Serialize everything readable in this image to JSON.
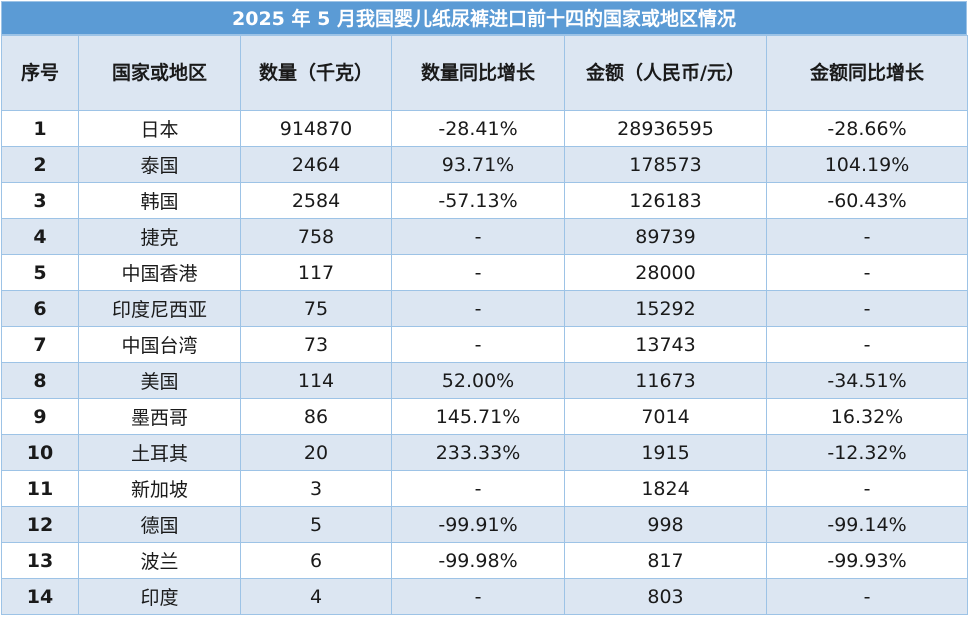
{
  "title": "2025 年 5 月我国婴儿纸尿裤进口前十四的国家或地区情况",
  "headers": [
    "序号",
    "国家或地区",
    "数量（千克）",
    "数量同比增长",
    "金额（人民币/元）",
    "金额同比增长"
  ],
  "rows": [
    [
      "1",
      "日本",
      "914870",
      "-28.41%",
      "28936595",
      "-28.66%"
    ],
    [
      "2",
      "泰国",
      "2464",
      "93.71%",
      "178573",
      "104.19%"
    ],
    [
      "3",
      "韩国",
      "2584",
      "-57.13%",
      "126183",
      "-60.43%"
    ],
    [
      "4",
      "捷克",
      "758",
      "-",
      "89739",
      "-"
    ],
    [
      "5",
      "中国香港",
      "117",
      "-",
      "28000",
      "-"
    ],
    [
      "6",
      "印度尼西亚",
      "75",
      "-",
      "15292",
      "-"
    ],
    [
      "7",
      "中国台湾",
      "73",
      "-",
      "13743",
      "-"
    ],
    [
      "8",
      "美国",
      "114",
      "52.00%",
      "11673",
      "-34.51%"
    ],
    [
      "9",
      "墨西哥",
      "86",
      "145.71%",
      "7014",
      "16.32%"
    ],
    [
      "10",
      "土耳其",
      "20",
      "233.33%",
      "1915",
      "-12.32%"
    ],
    [
      "11",
      "新加坡",
      "3",
      "-",
      "1824",
      "-"
    ],
    [
      "12",
      "德国",
      "5",
      "-99.91%",
      "998",
      "-99.14%"
    ],
    [
      "13",
      "波兰",
      "6",
      "-99.98%",
      "817",
      "-99.93%"
    ],
    [
      "14",
      "印度",
      "4",
      "-",
      "803",
      "-"
    ]
  ]
}
